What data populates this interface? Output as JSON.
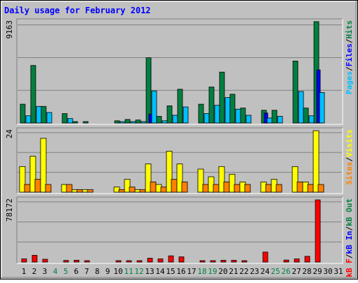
{
  "chart_data": {
    "type": "bar",
    "title": "Daily usage for February 2012",
    "days": [
      "1",
      "2",
      "3",
      "4",
      "5",
      "6",
      "7",
      "8",
      "9",
      "10",
      "11",
      "12",
      "13",
      "14",
      "15",
      "16",
      "17",
      "18",
      "19",
      "20",
      "21",
      "22",
      "23",
      "24",
      "25",
      "26",
      "27",
      "28",
      "29",
      "30",
      "31"
    ],
    "weekend_days": [
      4,
      5,
      11,
      12,
      18,
      19,
      25,
      26
    ],
    "panels": [
      {
        "id": "hits",
        "max_label": "9163",
        "ymax": 9163,
        "series": [
          {
            "name": "Hits",
            "color": "#008040",
            "values": [
              1700,
              5200,
              1500,
              0,
              850,
              120,
              60,
              0,
              0,
              200,
              320,
              270,
              5900,
              600,
              1550,
              3050,
              0,
              1700,
              3250,
              4600,
              2600,
              1350,
              0,
              1150,
              1150,
              0,
              5600,
              1350,
              9163,
              0,
              0
            ]
          },
          {
            "name": "Files",
            "color": "#0000ff",
            "values": [
              0,
              0,
              0,
              0,
              0,
              0,
              0,
              0,
              0,
              0,
              0,
              0,
              800,
              0,
              0,
              0,
              0,
              0,
              0,
              0,
              0,
              0,
              0,
              900,
              0,
              0,
              0,
              0,
              4800,
              0,
              0
            ]
          },
          {
            "name": "Pages",
            "color": "#00c0ff",
            "values": [
              650,
              1500,
              950,
              0,
              400,
              0,
              0,
              0,
              0,
              60,
              120,
              120,
              2900,
              200,
              700,
              1450,
              0,
              850,
              1600,
              2300,
              1250,
              700,
              0,
              450,
              600,
              0,
              2850,
              650,
              2750,
              0,
              0
            ]
          }
        ],
        "legend": [
          {
            "text": "Pages",
            "color": "#00c0ff"
          },
          {
            "text": "/",
            "color": "#000000"
          },
          {
            "text": "Files",
            "color": "#0000ff"
          },
          {
            "text": "/",
            "color": "#000000"
          },
          {
            "text": "Hits",
            "color": "#008040"
          }
        ]
      },
      {
        "id": "visits",
        "max_label": "24",
        "ymax": 24,
        "series": [
          {
            "name": "Visits",
            "color": "#ffff00",
            "values": [
              10,
              14,
              21,
              0,
              3,
              1,
              1,
              0,
              0,
              2,
              5,
              1,
              11,
              3,
              16,
              11,
              0,
              9,
              6,
              10,
              7,
              4,
              0,
              4,
              5,
              0,
              10,
              4,
              24,
              0,
              0
            ]
          },
          {
            "name": "Sites",
            "color": "#ff8000",
            "values": [
              3,
              5,
              3,
              0,
              3,
              1,
              1,
              0,
              0,
              1,
              2,
              1,
              4,
              2,
              5,
              4,
              0,
              3,
              3,
              4,
              3,
              3,
              0,
              3,
              3,
              0,
              4,
              3,
              3,
              0,
              0
            ]
          }
        ],
        "legend": [
          {
            "text": "Sites",
            "color": "#ff8000"
          },
          {
            "text": "/",
            "color": "#000000"
          },
          {
            "text": "Visits",
            "color": "#ffff00"
          }
        ]
      },
      {
        "id": "kbytes",
        "max_label": "78172",
        "ymax": 78172,
        "series": [
          {
            "name": "KBytes",
            "color": "#ff0000",
            "values": [
              4000,
              8500,
              3500,
              0,
              2000,
              2300,
              1000,
              0,
              0,
              1000,
              1200,
              1200,
              4800,
              4000,
              7800,
              6500,
              0,
              1200,
              1700,
              2200,
              2200,
              1500,
              0,
              12500,
              0,
              2500,
              4000,
              7200,
              78172,
              0,
              0
            ]
          }
        ],
        "legend": [
          {
            "text": "kB F",
            "color": "#ff0000"
          },
          {
            "text": "/",
            "color": "#000000"
          },
          {
            "text": "kB In",
            "color": "#0000ff"
          },
          {
            "text": "/",
            "color": "#000000"
          },
          {
            "text": "kB Out",
            "color": "#008040"
          }
        ]
      }
    ]
  },
  "colors": {
    "background": "#c0c0c0",
    "title": "#0000ff",
    "day_label": "#000000",
    "weekend_label": "#008040"
  }
}
